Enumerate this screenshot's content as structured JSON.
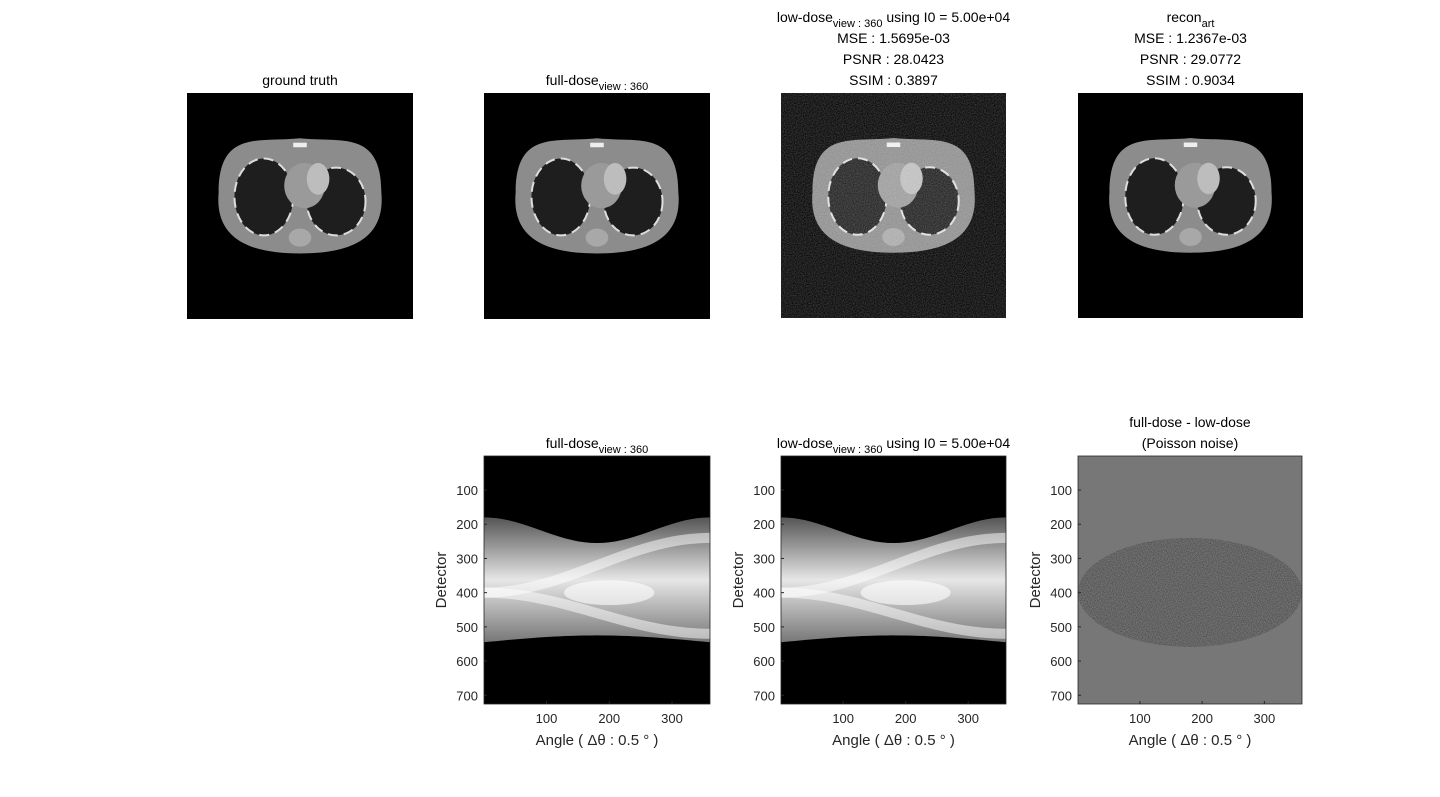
{
  "chart_data": [
    {
      "type": "image",
      "title_lines": [
        [
          "ground truth"
        ]
      ]
    },
    {
      "type": "image",
      "title_lines": [
        [
          "full-dose",
          "view : 360"
        ]
      ]
    },
    {
      "type": "image",
      "title_lines": [
        [
          "low-dose",
          "view : 360",
          " using I0 = 5.00e+04"
        ],
        [
          "MSE : 1.5695e-03"
        ],
        [
          "PSNR : 28.0423"
        ],
        [
          "SSIM : 0.3897"
        ]
      ]
    },
    {
      "type": "image",
      "title_lines": [
        [
          "recon",
          "art"
        ],
        [
          "MSE : 1.2367e-03"
        ],
        [
          "PSNR : 29.0772"
        ],
        [
          "SSIM : 0.9034"
        ]
      ]
    },
    {
      "type": "sinogram",
      "title_lines": [
        [
          "full-dose",
          "view : 360"
        ]
      ],
      "xlabel": "Angle ( Δθ : 0.5 ° )",
      "ylabel": "Detector",
      "xlim": [
        0.5,
        360.5
      ],
      "ylim": [
        0.5,
        725.5
      ],
      "xticks": [
        100,
        200,
        300
      ],
      "yticks": [
        100,
        200,
        300,
        400,
        500,
        600,
        700
      ]
    },
    {
      "type": "sinogram",
      "title_lines": [
        [
          "low-dose",
          "view : 360",
          " using I0 = 5.00e+04"
        ]
      ],
      "xlabel": "Angle ( Δθ : 0.5 ° )",
      "ylabel": "Detector",
      "xlim": [
        0.5,
        360.5
      ],
      "ylim": [
        0.5,
        725.5
      ],
      "xticks": [
        100,
        200,
        300
      ],
      "yticks": [
        100,
        200,
        300,
        400,
        500,
        600,
        700
      ]
    },
    {
      "type": "difference",
      "title_lines": [
        [
          "full-dose - low-dose"
        ],
        [
          "(Poisson noise)"
        ]
      ],
      "xlabel": "Angle ( Δθ : 0.5 ° )",
      "ylabel": "Detector",
      "xlim": [
        0.5,
        360.5
      ],
      "ylim": [
        0.5,
        725.5
      ],
      "xticks": [
        100,
        200,
        300
      ],
      "yticks": [
        100,
        200,
        300,
        400,
        500,
        600,
        700
      ]
    }
  ]
}
